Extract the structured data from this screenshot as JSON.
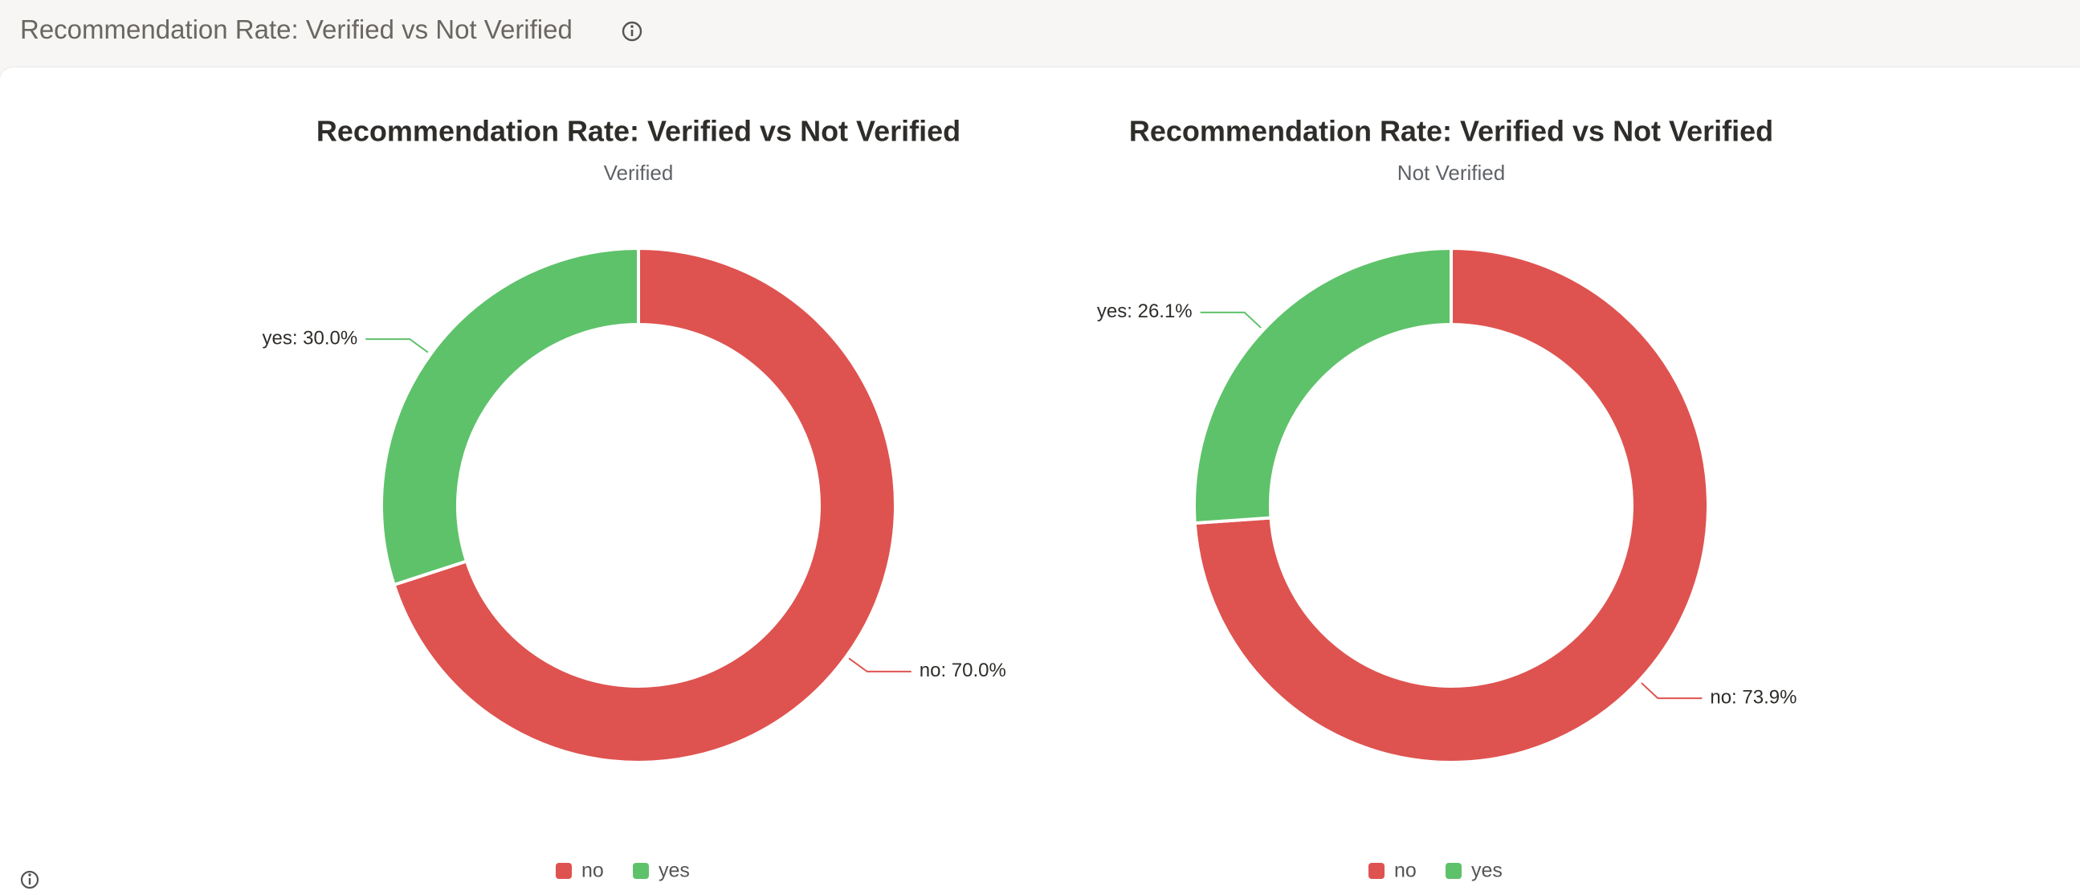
{
  "header": {
    "title": "Recommendation Rate: Verified vs Not Verified"
  },
  "chart_data": [
    {
      "type": "pie",
      "title": "Recommendation Rate: Verified vs Not Verified",
      "subtitle": "Verified",
      "categories": [
        "no",
        "yes"
      ],
      "values": [
        70.0,
        30.0
      ],
      "value_labels": [
        "no: 70.0%",
        "yes: 30.0%"
      ],
      "colors": [
        "#de5350",
        "#5ec26a"
      ],
      "legend": "bottom"
    },
    {
      "type": "pie",
      "title": "Recommendation Rate: Verified vs Not Verified",
      "subtitle": "Not Verified",
      "categories": [
        "no",
        "yes"
      ],
      "values": [
        73.9,
        26.1
      ],
      "value_labels": [
        "no: 73.9%",
        "yes: 26.1%"
      ],
      "colors": [
        "#de5350",
        "#5ec26a"
      ],
      "legend": "bottom"
    }
  ]
}
